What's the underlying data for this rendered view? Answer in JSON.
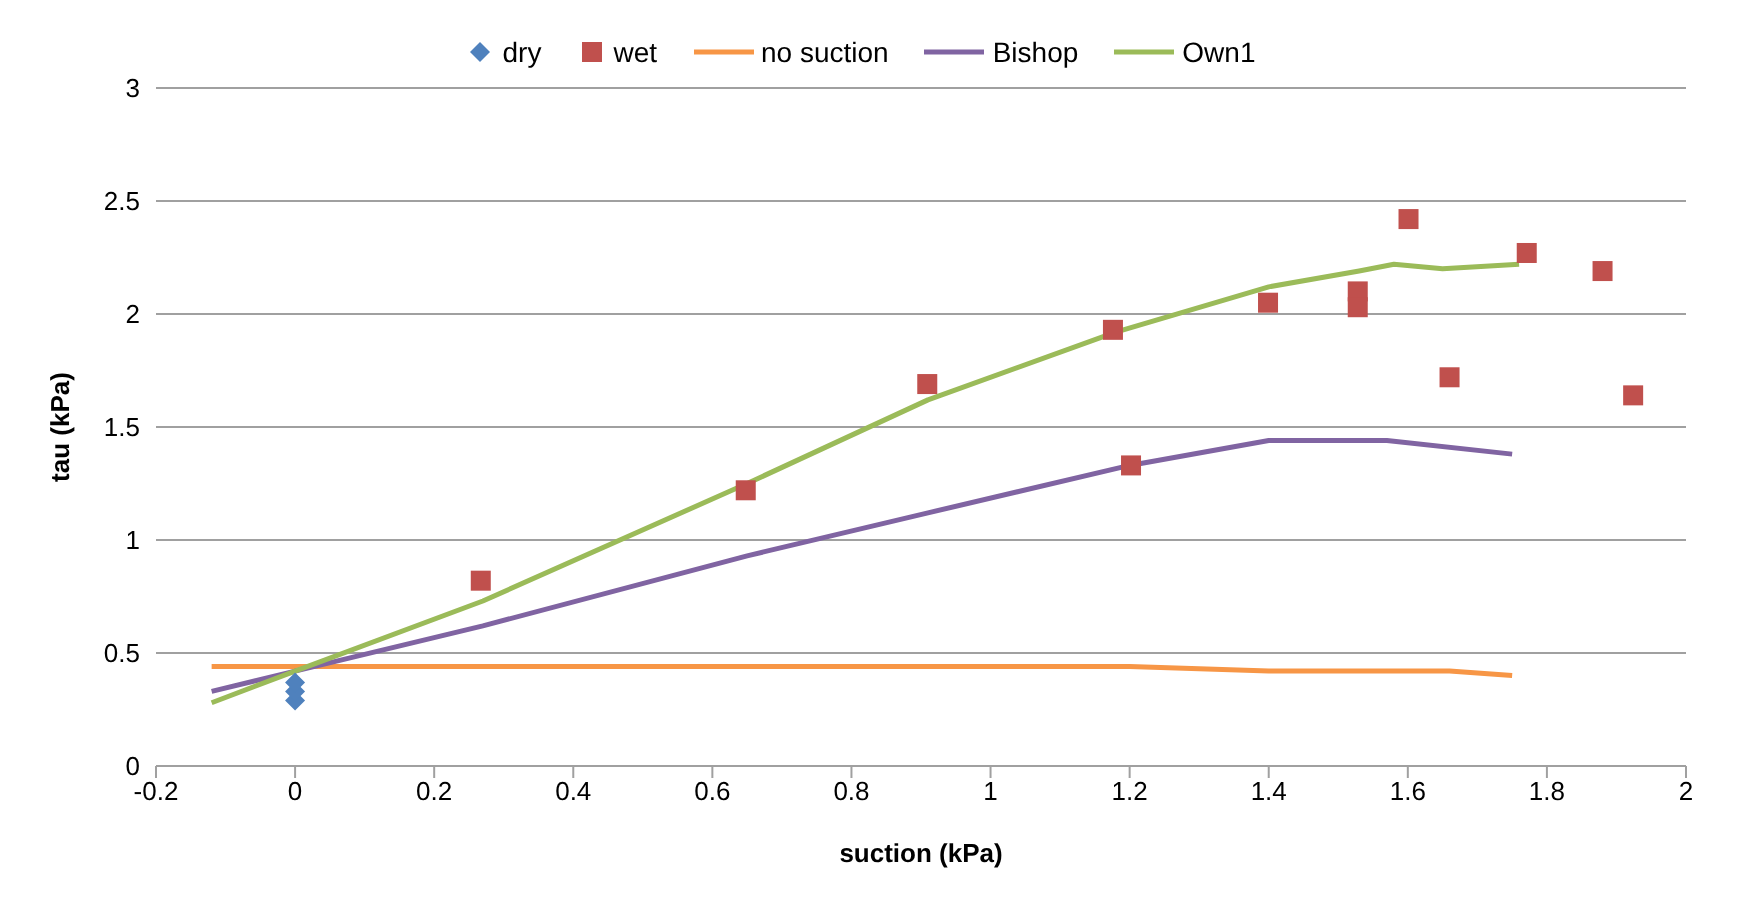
{
  "chart_data": {
    "type": "scatter",
    "xlabel": "suction (kPa)",
    "ylabel": "tau (kPa)",
    "xlim": [
      -0.2,
      2
    ],
    "xticks": [
      -0.2,
      0,
      0.2,
      0.4,
      0.6,
      0.8,
      1,
      1.2,
      1.4,
      1.6,
      1.8,
      2
    ],
    "ylim": [
      0,
      3
    ],
    "yticks": [
      0,
      0.5,
      1,
      1.5,
      2,
      2.5,
      3
    ],
    "grid": "y",
    "legend": "top",
    "series": [
      {
        "name": "dry",
        "marker": "diamond",
        "color": "#4f81bd",
        "x": [
          0,
          0,
          0
        ],
        "values": [
          0.29,
          0.33,
          0.37
        ]
      },
      {
        "name": "wet",
        "marker": "square",
        "color": "#c0504d",
        "x": [
          0.267,
          0.648,
          0.909,
          1.176,
          1.202,
          1.399,
          1.528,
          1.528,
          1.601,
          1.66,
          1.771,
          1.88,
          1.924
        ],
        "values": [
          0.82,
          1.22,
          1.69,
          1.93,
          1.33,
          2.05,
          2.1,
          2.03,
          2.42,
          1.72,
          2.27,
          2.19,
          1.64
        ]
      },
      {
        "name": "no suction",
        "type": "line",
        "marker": "none",
        "color": "#f79646",
        "x": [
          -0.12,
          0,
          0.27,
          0.65,
          0.91,
          1.18,
          1.2,
          1.4,
          1.53,
          1.6,
          1.66,
          1.75
        ],
        "values": [
          0.44,
          0.44,
          0.44,
          0.44,
          0.44,
          0.44,
          0.44,
          0.42,
          0.42,
          0.42,
          0.42,
          0.4
        ]
      },
      {
        "name": "Bishop",
        "type": "line",
        "marker": "none",
        "color": "#8064a2",
        "x": [
          -0.12,
          0,
          0.27,
          0.65,
          0.91,
          1.2,
          1.4,
          1.57,
          1.75
        ],
        "values": [
          0.33,
          0.42,
          0.62,
          0.93,
          1.12,
          1.33,
          1.44,
          1.44,
          1.38
        ]
      },
      {
        "name": "Own1",
        "type": "line",
        "marker": "none",
        "color": "#9bbb59",
        "x": [
          -0.12,
          0,
          0.27,
          0.65,
          0.91,
          1.18,
          1.4,
          1.53,
          1.58,
          1.65,
          1.76
        ],
        "values": [
          0.28,
          0.42,
          0.73,
          1.25,
          1.62,
          1.92,
          2.12,
          2.19,
          2.22,
          2.2,
          2.22
        ]
      }
    ]
  }
}
